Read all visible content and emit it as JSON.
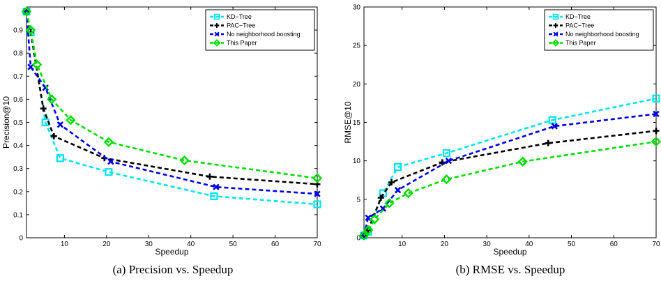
{
  "chart_data": [
    {
      "type": "line",
      "caption": "(a) Precision vs. Speedup",
      "xlabel": "Speedup",
      "ylabel": "Precision@10",
      "xlim": [
        1,
        70
      ],
      "ylim": [
        0,
        1
      ],
      "xticks": [
        10,
        20,
        30,
        40,
        50,
        60,
        70
      ],
      "yticks": [
        0,
        0.1,
        0.2,
        0.3,
        0.4,
        0.5,
        0.6,
        0.7,
        0.8,
        0.9
      ],
      "ytick_labels": [
        "0",
        "0.1",
        "0.2",
        "0.3",
        "0.4",
        "0.5",
        "0.6",
        "0.7",
        "0.8",
        "0.9"
      ],
      "xtick_labels": [
        "10",
        "20",
        "30",
        "40",
        "50",
        "60",
        "70"
      ],
      "legend_position": "top-right",
      "series": [
        {
          "name": "KD−Tree",
          "color": "#00e5ee",
          "marker": "square",
          "x": [
            1,
            2,
            5.5,
            9,
            20.5,
            45.5,
            70
          ],
          "y": [
            0.98,
            0.89,
            0.5,
            0.345,
            0.285,
            0.18,
            0.145
          ]
        },
        {
          "name": "PAC−Tree",
          "color": "#000000",
          "marker": "plus",
          "x": [
            1,
            2,
            5,
            7.5,
            19.5,
            44.5,
            70
          ],
          "y": [
            0.98,
            0.89,
            0.56,
            0.44,
            0.345,
            0.265,
            0.232
          ]
        },
        {
          "name": "No neighborhood boosting",
          "color": "#0000ee",
          "marker": "x",
          "x": [
            1,
            2,
            5.5,
            9,
            21,
            46,
            70
          ],
          "y": [
            0.98,
            0.74,
            0.65,
            0.49,
            0.33,
            0.22,
            0.19
          ]
        },
        {
          "name": "This Paper",
          "color": "#00dd00",
          "marker": "diamond",
          "x": [
            1,
            2,
            3.5,
            7,
            11.5,
            20.5,
            38.5,
            70
          ],
          "y": [
            0.98,
            0.9,
            0.75,
            0.6,
            0.51,
            0.415,
            0.335,
            0.258
          ]
        }
      ]
    },
    {
      "type": "line",
      "caption": "(b) RMSE vs. Speedup",
      "xlabel": "Speedup",
      "ylabel": "RMSE@10",
      "xlim": [
        1,
        70
      ],
      "ylim": [
        0,
        30
      ],
      "xticks": [
        10,
        20,
        30,
        40,
        50,
        60,
        70
      ],
      "yticks": [
        0,
        5,
        10,
        15,
        20,
        25,
        30
      ],
      "ytick_labels": [
        "0",
        "5",
        "10",
        "15",
        "20",
        "25",
        "30"
      ],
      "xtick_labels": [
        "10",
        "20",
        "30",
        "40",
        "50",
        "60",
        "70"
      ],
      "legend_position": "top-right",
      "series": [
        {
          "name": "KD−Tree",
          "color": "#00e5ee",
          "marker": "square",
          "x": [
            1,
            2,
            5.5,
            9,
            20.5,
            45.5,
            70
          ],
          "y": [
            0.3,
            0.8,
            5.8,
            9.2,
            11.0,
            15.3,
            18.1
          ]
        },
        {
          "name": "PAC−Tree",
          "color": "#000000",
          "marker": "plus",
          "x": [
            1,
            2,
            5,
            7.5,
            19.5,
            44.5,
            70
          ],
          "y": [
            0.3,
            1.0,
            5.2,
            7.2,
            9.8,
            12.3,
            13.9
          ]
        },
        {
          "name": "No neighborhood boosting",
          "color": "#0000ee",
          "marker": "x",
          "x": [
            1,
            2,
            5.5,
            9,
            21,
            46,
            70
          ],
          "y": [
            0.3,
            2.6,
            3.8,
            6.2,
            10.0,
            14.5,
            16.1
          ]
        },
        {
          "name": "This Paper",
          "color": "#00dd00",
          "marker": "diamond",
          "x": [
            1,
            2,
            3.5,
            7,
            11.5,
            20.5,
            38.5,
            70
          ],
          "y": [
            0.3,
            1.0,
            2.4,
            4.5,
            5.8,
            7.6,
            9.9,
            12.5
          ]
        }
      ]
    }
  ]
}
